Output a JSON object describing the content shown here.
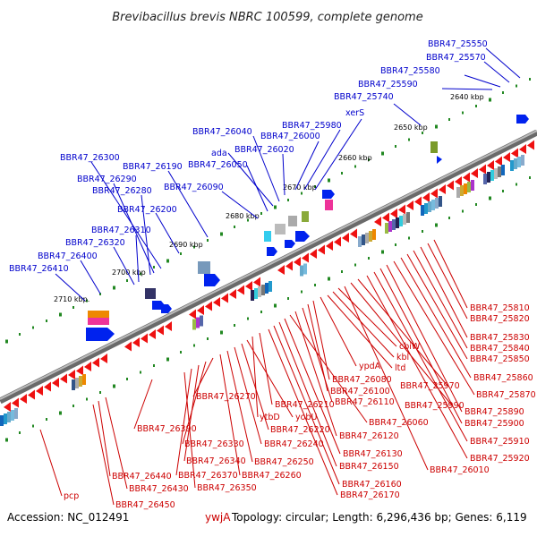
{
  "title": "Brevibacillus brevis NBRC 100599, complete genome",
  "accession": "Accession: NC_012491",
  "topology": "Topology: circular; Length: 6,296,436 bp; Genes: 6,119",
  "colors": {
    "forward_label": "#0000cc",
    "reverse_label": "#cc0000",
    "forward_arrow": "#0022ee",
    "reverse_arrow": "#ee1111",
    "tick": "#228822"
  },
  "kbp_marks": [
    "2640 kbp",
    "2650 kbp",
    "2660 kbp",
    "2670 kbp",
    "2680 kbp",
    "2690 kbp",
    "2700 kbp",
    "2710 kbp."
  ],
  "forward_labels": [
    "BBR47_25550",
    "BBR47_25570",
    "BBR47_25580",
    "BBR47_25590",
    "BBR47_25740",
    "xerS",
    "BBR47_25980",
    "BBR47_26000",
    "BBR47_26020",
    "BBR47_26040",
    "ada",
    "BBR47_26050",
    "BBR47_26090",
    "BBR47_26300",
    "BBR47_26190",
    "BBR47_26290",
    "BBR47_26280",
    "BBR47_26200",
    "BBR47_26310",
    "BBR47_26320",
    "BBR47_26400",
    "BBR47_26410"
  ],
  "reverse_labels": [
    "BBR47_25810",
    "BBR47_25820",
    "BBR47_25830",
    "BBR47_25840",
    "BBR47_25850",
    "BBR47_25860",
    "BBR47_25870",
    "BBR47_25890",
    "BBR47_25900",
    "BBR47_25910",
    "BBR47_25920",
    "BBR47_25970",
    "BBR47_25990",
    "BBR47_26010",
    "cbiW",
    "kbl",
    "ltd",
    "ypdA",
    "BBR47_26080",
    "BBR47_26100",
    "BBR47_26110",
    "BBR47_26120",
    "BBR47_26060",
    "BBR47_26130",
    "BBR47_26150",
    "BBR47_26160",
    "BBR47_26170",
    "BBR47_26210",
    "ytbD",
    "yobU",
    "BBR47_26220",
    "BBR47_26240",
    "BBR47_26250",
    "BBR47_26260",
    "BBR47_26270",
    "BBR47_26330",
    "BBR47_26340",
    "BBR47_26370",
    "BBR47_26350",
    "BBR47_26390",
    "BBR47_26440",
    "BBR47_26430",
    "BBR47_26450",
    "pcp",
    "ywjA"
  ]
}
